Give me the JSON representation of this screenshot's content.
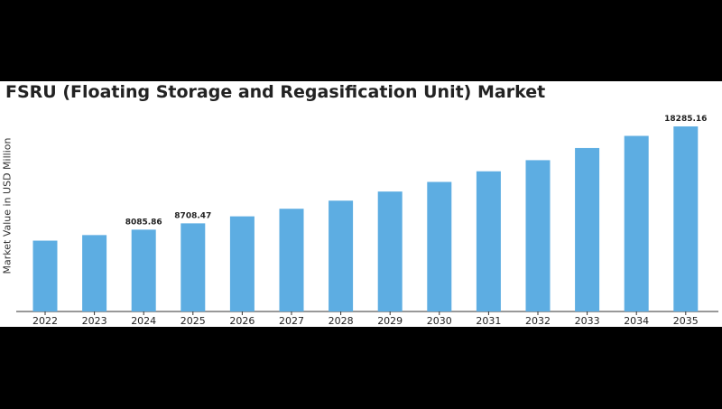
{
  "chart_data": {
    "type": "bar",
    "title": "FSRU (Floating Storage and Regasification Unit) Market",
    "ylabel": "Market Value in USD Million",
    "xlabel": "",
    "categories": [
      "2022",
      "2023",
      "2024",
      "2025",
      "2026",
      "2027",
      "2028",
      "2029",
      "2030",
      "2031",
      "2032",
      "2033",
      "2034",
      "2035"
    ],
    "values": [
      7000,
      7550,
      8085.86,
      8708.47,
      9400,
      10150,
      10950,
      11850,
      12800,
      13850,
      14950,
      16150,
      17350,
      18285.16
    ],
    "data_labels": {
      "2024": "8085.86",
      "2025": "8708.47",
      "2035": "18285.16"
    },
    "ylim": [
      0,
      19000
    ],
    "grid": false,
    "bar_color": "#5dade2"
  }
}
